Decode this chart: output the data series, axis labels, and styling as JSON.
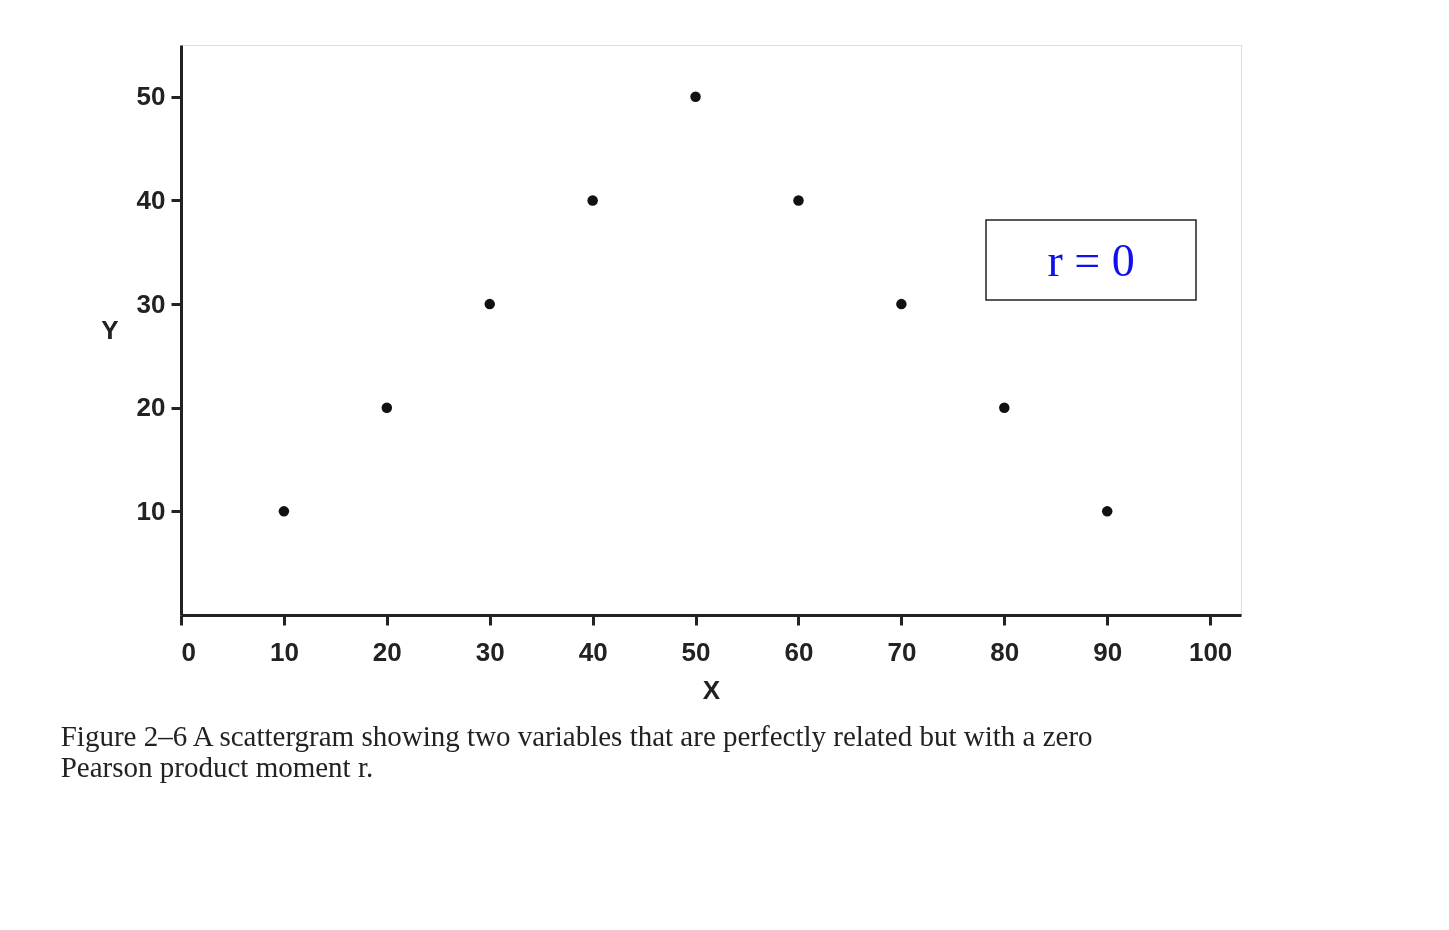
{
  "chart_data": {
    "type": "scatter",
    "x": [
      10,
      20,
      30,
      40,
      50,
      60,
      70,
      80,
      90
    ],
    "series": [
      {
        "color": "#111111",
        "values": [
          10,
          20,
          30,
          40,
          50,
          40,
          30,
          20,
          10
        ]
      }
    ],
    "xlabel": "X",
    "ylabel": "Y",
    "xlim": [
      0,
      103
    ],
    "xticks": [
      0,
      10,
      20,
      30,
      40,
      50,
      60,
      70,
      80,
      90,
      100
    ],
    "ylim": [
      0,
      55
    ],
    "yticks": [
      10,
      20,
      30,
      40,
      50
    ],
    "grid": false,
    "marker": "circle",
    "annotations": [
      "r = 0",
      "Figure 2–6    A scattergram showing two variables that are perfectly related but with a zero Pearson product moment r."
    ]
  }
}
